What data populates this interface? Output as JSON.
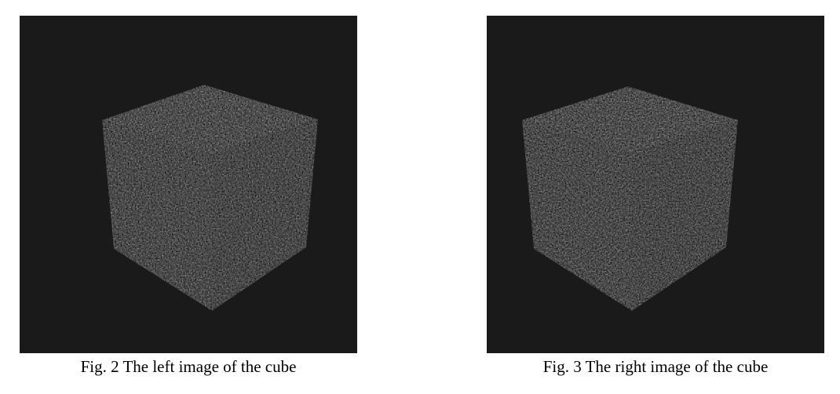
{
  "figures": [
    {
      "caption": "Fig. 2 The left image of the cube",
      "subject": "speckle-textured-cube-left-view"
    },
    {
      "caption": "Fig. 3 The right image of the cube",
      "subject": "speckle-textured-cube-right-view"
    }
  ],
  "colors": {
    "background": "#1a1a1a",
    "cube_face_top": "#575757",
    "cube_face_left": "#474747",
    "cube_face_right": "#3c3c3c",
    "caption_text": "#000000"
  }
}
